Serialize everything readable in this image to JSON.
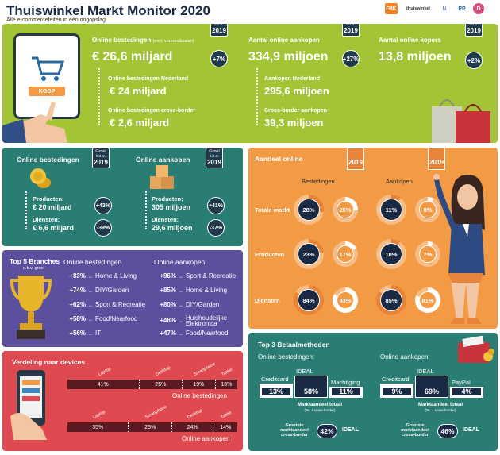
{
  "header": {
    "title": "Thuiswinkel Markt Monitor 2020",
    "subtitle": "Alle e-commercefeiten in één oogopslag",
    "logos": [
      "GfK",
      "thuiswinkel",
      "N",
      "PP",
      "D"
    ]
  },
  "growth_badge": {
    "line1": "Groei",
    "line2": "t.o.v.",
    "year": "2019"
  },
  "hero": {
    "metrics": [
      {
        "label": "Online bestedingen",
        "note": "(excl. verzendkosten)",
        "value": "€ 26,6 miljard",
        "growth": "+7%"
      },
      {
        "label": "Aantal online aankopen",
        "value": "334,9 miljoen",
        "growth": "+27%"
      },
      {
        "label": "Aantal online kopers",
        "value": "13,8 miljoen",
        "growth": "+2%"
      }
    ],
    "sub_left": [
      {
        "label": "Online bestedingen Nederland",
        "value": "€ 24 miljard"
      },
      {
        "label": "Online bestedingen cross-border",
        "value": "€ 2,6 miljard"
      }
    ],
    "sub_mid": [
      {
        "label": "Aankopen Nederland",
        "value": "295,6 miljoen"
      },
      {
        "label": "Cross-border aankopen",
        "value": "39,3 miljoen"
      }
    ],
    "koop_label": "KOOP"
  },
  "split": {
    "left": {
      "title": "Online bestedingen",
      "rows": [
        {
          "label": "Producten:",
          "value": "€ 20 miljard",
          "growth": "+43%"
        },
        {
          "label": "Diensten:",
          "value": "€ 6,6 miljard",
          "growth": "-39%"
        }
      ]
    },
    "right": {
      "title": "Online aankopen",
      "rows": [
        {
          "label": "Producten:",
          "value": "305 miljoen",
          "growth": "+41%"
        },
        {
          "label": "Diensten:",
          "value": "29,6 miljoen",
          "growth": "-37%"
        }
      ]
    }
  },
  "branches": {
    "title": "Top 5 Branches",
    "note": "o.b.v. groei",
    "col1_title": "Online bestedingen",
    "col2_title": "Online aankopen",
    "col1": [
      {
        "pct": "+83%",
        "name": "Home & Living"
      },
      {
        "pct": "+74%",
        "name": "DIY/Garden"
      },
      {
        "pct": "+62%",
        "name": "Sport & Recreatie"
      },
      {
        "pct": "+58%",
        "name": "Food/Nearfood"
      },
      {
        "pct": "+56%",
        "name": "IT"
      }
    ],
    "col2": [
      {
        "pct": "+96%",
        "name": "Sport & Recreatie"
      },
      {
        "pct": "+85%",
        "name": "Home & Living"
      },
      {
        "pct": "+80%",
        "name": "DIY/Garden"
      },
      {
        "pct": "+48%",
        "name": "Huishoudelijke Elektronica"
      },
      {
        "pct": "+47%",
        "name": "Food/Nearfood"
      }
    ]
  },
  "devices": {
    "title": "Verdeling naar devices",
    "bestedingen_label": "Online bestedingen",
    "aankopen_label": "Online aankopen",
    "bestedingen": [
      {
        "device": "Laptop",
        "pct": "41%",
        "value": 41
      },
      {
        "device": "Desktop",
        "pct": "25%",
        "value": 25
      },
      {
        "device": "Smartphone",
        "pct": "19%",
        "value": 19
      },
      {
        "device": "Tablet",
        "pct": "13%",
        "value": 13
      }
    ],
    "aankopen": [
      {
        "device": "Laptop",
        "pct": "35%",
        "value": 35
      },
      {
        "device": "Smartphone",
        "pct": "25%",
        "value": 25
      },
      {
        "device": "Desktop",
        "pct": "24%",
        "value": 24
      },
      {
        "device": "Tablet",
        "pct": "14%",
        "value": 14
      }
    ]
  },
  "aandeel": {
    "title": "Aandeel online",
    "year": "2019",
    "col_bestedingen": "Bestedingen",
    "col_aankopen": "Aankopen",
    "rows": [
      {
        "label": "Totale markt",
        "b2019": "28%",
        "b2018": "26%",
        "a2019": "11%",
        "a2018": "8%",
        "vb19": 28,
        "vb18": 26,
        "va19": 11,
        "va18": 8
      },
      {
        "label": "Producten",
        "b2019": "23%",
        "b2018": "17%",
        "a2019": "10%",
        "a2018": "7%",
        "vb19": 23,
        "vb18": 17,
        "va19": 10,
        "va18": 7
      },
      {
        "label": "Diensten",
        "b2019": "84%",
        "b2018": "83%",
        "a2019": "85%",
        "a2018": "81%",
        "vb19": 84,
        "vb18": 83,
        "va19": 85,
        "va18": 81
      }
    ]
  },
  "betaal": {
    "title": "Top 3 Betaalmethoden",
    "left": {
      "title": "Online bestedingen:",
      "items": [
        {
          "name": "Creditcard",
          "pct": "13%"
        },
        {
          "name": "IDEAL",
          "pct": "58%"
        },
        {
          "name": "Machtiging",
          "pct": "11%"
        }
      ]
    },
    "right": {
      "title": "Online aankopen:",
      "items": [
        {
          "name": "Creditcard",
          "pct": "9%"
        },
        {
          "name": "IDEAL",
          "pct": "69%"
        },
        {
          "name": "PayPal",
          "pct": "4%"
        }
      ]
    },
    "totaal_label": "Marktaandeel totaal",
    "totaal_note": "(NL + cross-border)",
    "cb_label": "Grootste marktaandeel cross-border",
    "cb_left_pct": "42%",
    "cb_right_pct": "46%",
    "cb_method": "IDEAL"
  }
}
